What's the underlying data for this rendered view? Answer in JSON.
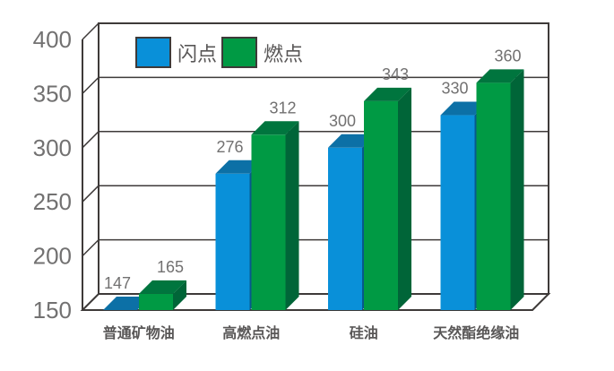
{
  "chart_data": {
    "type": "bar",
    "style": "3d-box",
    "title": "",
    "xlabel": "",
    "ylabel": "",
    "categories": [
      "普通矿物油",
      "高燃点油",
      "硅油",
      "天然酯绝缘油"
    ],
    "series": [
      {
        "name": "闪点",
        "values": [
          147,
          276,
          300,
          330
        ],
        "color_front": "#0990d9",
        "color_top": "#0c70a6",
        "color_side": "#07598a"
      },
      {
        "name": "燃点",
        "values": [
          165,
          312,
          343,
          360
        ],
        "color_front": "#009a44",
        "color_top": "#00753e",
        "color_side": "#006538"
      }
    ],
    "ylim": [
      150,
      400
    ],
    "ytick_step": 50,
    "ytick_labels": [
      "150",
      "200",
      "250",
      "300",
      "350",
      "400"
    ],
    "grid": true,
    "value_labels_shown": true,
    "legend_position": "top-inside",
    "colors": {
      "axis_line": "#3e3a39",
      "tick_label": "#727171",
      "value_label": "#727171",
      "category_label": "#595757",
      "legend_text": "#595757",
      "background": "#ffffff",
      "wall_fill": "#ffffff"
    }
  }
}
